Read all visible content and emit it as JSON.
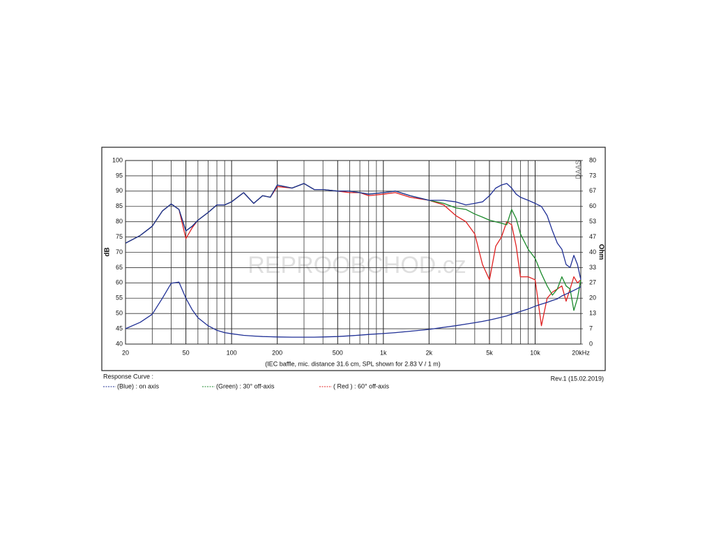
{
  "chart_data": {
    "type": "line",
    "x_scale": "log",
    "y_label": "dB",
    "y2_label": "Ohm",
    "caption": "(IEC baffle, mic. distance 31.6 cm, SPL shown for 2.83 V / 1 m)",
    "legend_title": "Response Curve :",
    "revision": "Rev.1 (15.02.2019)",
    "logo": "DAAS",
    "watermark": "REPROOBCHOD.cz",
    "grid": true,
    "xlim": [
      20,
      20000
    ],
    "xticks": [
      20,
      50,
      100,
      200,
      500,
      {
        "value": 1000,
        "label": "1k"
      },
      {
        "value": 2000,
        "label": "2k"
      },
      {
        "value": 5000,
        "label": "5k"
      },
      {
        "value": 10000,
        "label": "10k"
      },
      {
        "value": 20000,
        "label": "20kHz"
      }
    ],
    "xminor_ticks": [
      30,
      40,
      60,
      70,
      80,
      90,
      300,
      400,
      600,
      700,
      800,
      900,
      3000,
      4000,
      6000,
      7000,
      8000,
      9000
    ],
    "ylim": [
      40,
      100
    ],
    "yticks": [
      40,
      45,
      50,
      55,
      60,
      65,
      70,
      75,
      80,
      85,
      90,
      95,
      100
    ],
    "y2lim": [
      0,
      80
    ],
    "y2ticks": [
      0,
      {
        "value": 6.67,
        "label": "7"
      },
      {
        "value": 13.33,
        "label": "13"
      },
      20,
      {
        "value": 26.67,
        "label": "27"
      },
      {
        "value": 33.33,
        "label": "33"
      },
      40,
      {
        "value": 46.67,
        "label": "47"
      },
      {
        "value": 53.33,
        "label": "53"
      },
      60,
      {
        "value": 66.67,
        "label": "67"
      },
      {
        "value": 73.33,
        "label": "73"
      },
      80
    ],
    "x": [
      20,
      25,
      30,
      35,
      40,
      45,
      50,
      55,
      60,
      70,
      80,
      90,
      100,
      120,
      140,
      160,
      180,
      200,
      250,
      300,
      350,
      400,
      500,
      600,
      700,
      800,
      1000,
      1200,
      1500,
      2000,
      2500,
      3000,
      3500,
      4000,
      4500,
      5000,
      5500,
      6000,
      6500,
      7000,
      7500,
      8000,
      9000,
      10000,
      11000,
      12000,
      13000,
      14000,
      15000,
      16000,
      17000,
      18000,
      19000,
      20000
    ],
    "series": [
      {
        "name": "(Blue)  : on axis",
        "color": "#1f2f95",
        "values": [
          73,
          75.5,
          78.5,
          83.5,
          85.8,
          84,
          77,
          78.5,
          80.5,
          83,
          85.5,
          85.5,
          86.5,
          89.5,
          86,
          88.5,
          88,
          92,
          91,
          92.5,
          90.5,
          90.5,
          90,
          90,
          89.5,
          89,
          89.5,
          90,
          88.5,
          87,
          87,
          86.5,
          85.5,
          86,
          86.5,
          88.5,
          91,
          92,
          92.5,
          91,
          89,
          88,
          87,
          86,
          85,
          82,
          77,
          73,
          71,
          66,
          65,
          69,
          66,
          61
        ]
      },
      {
        "name": "(Green) : 30° off-axis",
        "color": "#1c8a2c",
        "values": [
          73,
          75.5,
          78.5,
          83.5,
          85.8,
          84,
          77,
          78.5,
          80.5,
          83,
          85.5,
          85.5,
          86.5,
          89.5,
          86,
          88.5,
          88,
          92,
          91,
          92.5,
          90.5,
          90.5,
          90,
          90,
          89.5,
          89,
          89.5,
          90,
          88.5,
          87,
          86,
          84.5,
          84,
          82.5,
          81.5,
          80.5,
          80,
          79.5,
          79,
          84,
          81,
          76,
          71,
          68,
          63,
          59,
          56,
          58,
          62,
          59,
          58,
          51,
          55,
          61
        ]
      },
      {
        "name": "( Red ) : 60° off-axis",
        "color": "#e02020",
        "values": [
          73,
          75.5,
          78.5,
          83.5,
          85.8,
          84,
          74.5,
          78,
          80.5,
          83,
          85.5,
          85.5,
          86.5,
          89.5,
          86,
          88.5,
          88,
          91.5,
          91,
          92.5,
          90.5,
          90.5,
          90,
          89.5,
          89.5,
          88.5,
          89,
          89.5,
          88,
          87,
          85.5,
          82,
          80,
          76,
          66,
          61,
          72,
          75,
          80,
          79,
          72,
          62,
          62,
          61,
          46,
          55,
          57,
          58,
          59,
          54,
          58,
          62,
          60,
          61
        ]
      },
      {
        "color": "#1f2f95",
        "axis": "y2",
        "values": [
          6.7,
          9.5,
          13,
          20,
          26.5,
          27,
          20,
          15,
          11.5,
          8,
          6,
          5,
          4.5,
          3.8,
          3.5,
          3.3,
          3.2,
          3.1,
          3,
          3,
          3,
          3.1,
          3.3,
          3.6,
          3.9,
          4.2,
          4.6,
          5,
          5.6,
          6.4,
          7.3,
          8,
          8.7,
          9.3,
          9.9,
          10.5,
          11.1,
          11.7,
          12.3,
          13,
          13.6,
          14.2,
          15.3,
          16.5,
          17.4,
          18.2,
          19,
          19.7,
          21,
          21.8,
          22.6,
          23.4,
          24.2,
          25
        ]
      }
    ]
  }
}
